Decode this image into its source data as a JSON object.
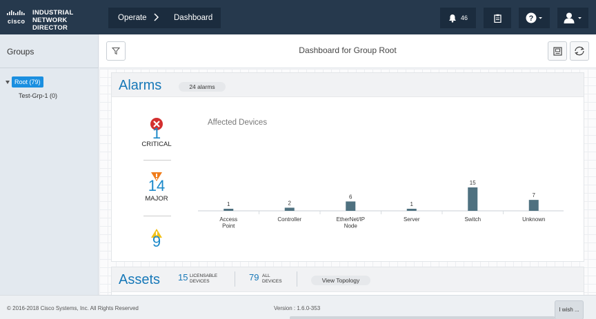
{
  "header": {
    "logo_text": "cisco",
    "product_line1": "INDUSTRIAL",
    "product_line2": "NETWORK DIRECTOR",
    "breadcrumb": [
      "Operate",
      "Dashboard"
    ],
    "notifications_count": "46",
    "icons": [
      "bell-icon",
      "clipboard-icon",
      "help-icon",
      "user-icon"
    ]
  },
  "sidebar": {
    "title": "Groups",
    "root_label": "Root (79)",
    "children": [
      "Test-Grp-1 (0)"
    ]
  },
  "main": {
    "title": "Dashboard for Group Root"
  },
  "alarms": {
    "title": "Alarms",
    "count_pill": "24 alarms",
    "severities": [
      {
        "name": "critical",
        "count": "1",
        "label": "CRITICAL",
        "color": "#d32f2f"
      },
      {
        "name": "major",
        "count": "14",
        "label": "MAJOR",
        "color": "#f07c1a"
      },
      {
        "name": "minor",
        "count": "9",
        "label": "",
        "color": "#f2c21b"
      }
    ],
    "chart_title": "Affected Devices"
  },
  "chart_data": {
    "type": "bar",
    "title": "Affected Devices",
    "categories": [
      "Access\nPoint",
      "Controller",
      "EtherNet/IP\nNode",
      "Server",
      "Switch",
      "Unknown"
    ],
    "values": [
      1,
      2,
      6,
      1,
      15,
      7
    ],
    "xlabel": "",
    "ylabel": "",
    "ylim": [
      0,
      15
    ],
    "grid": false,
    "bar_color": "#4f7180"
  },
  "assets": {
    "title": "Assets",
    "licensable_count": "15",
    "licensable_label_1": "LICENSABLE",
    "licensable_label_2": "DEVICES",
    "all_count": "79",
    "all_label_1": "ALL",
    "all_label_2": "DEVICES",
    "topology_button": "View Topology"
  },
  "footer": {
    "copyright": "© 2016-2018 Cisco Systems, Inc. All Rights Reserved",
    "version": "Version : 1.6.0-353",
    "wish_button": "I wish ..."
  }
}
